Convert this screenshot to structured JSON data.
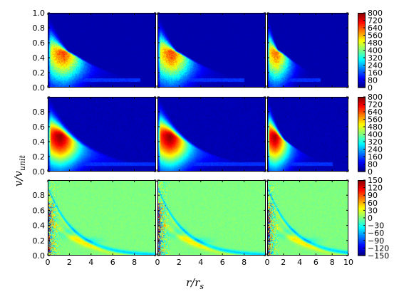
{
  "chart_data": {
    "type": "heatmap",
    "layout": "3x3 grid of 2D histograms with one colorbar per row",
    "xlabel": "r/r",
    "xlabel_sub": "s",
    "ylabel": "v/v",
    "ylabel_sub": "unit",
    "xlim": [
      0,
      10
    ],
    "x_ticks": [
      "0",
      "2",
      "4",
      "6",
      "8"
    ],
    "x_ticks_last_panel": [
      "0",
      "2",
      "4",
      "6",
      "8",
      "10"
    ],
    "colormap": "jet",
    "rows": [
      {
        "ylim": [
          0.0,
          1.0
        ],
        "y_ticks": [
          "0.0",
          "0.2",
          "0.4",
          "0.6",
          "0.8",
          "1.0"
        ],
        "colorbar_range": [
          0,
          800
        ],
        "colorbar_ticks": [
          "800",
          "720",
          "640",
          "560",
          "480",
          "400",
          "320",
          "240",
          "160",
          "80",
          "0"
        ],
        "panels": [
          {
            "peak_r": 1.5,
            "peak_v": 0.43,
            "r_extent": 7.5,
            "peak_level": 0.78
          },
          {
            "peak_r": 1.4,
            "peak_v": 0.43,
            "r_extent": 7.0,
            "peak_level": 0.78
          },
          {
            "peak_r": 1.2,
            "peak_v": 0.43,
            "r_extent": 5.5,
            "peak_level": 0.74
          }
        ]
      },
      {
        "ylim": [
          0.0,
          1.0
        ],
        "y_ticks": [
          "0.0",
          "0.2",
          "0.4",
          "0.6",
          "0.8"
        ],
        "colorbar_range": [
          0,
          800
        ],
        "colorbar_ticks": [
          "800",
          "720",
          "640",
          "560",
          "480",
          "400",
          "320",
          "240",
          "160",
          "80",
          "0"
        ],
        "panels": [
          {
            "peak_r": 1.2,
            "peak_v": 0.43,
            "r_extent": 9.5,
            "peak_level": 0.95
          },
          {
            "peak_r": 1.2,
            "peak_v": 0.43,
            "r_extent": 9.0,
            "peak_level": 0.95
          },
          {
            "peak_r": 1.0,
            "peak_v": 0.43,
            "r_extent": 7.0,
            "peak_level": 0.93
          }
        ]
      },
      {
        "ylim": [
          0.0,
          1.0
        ],
        "y_ticks": [
          "0.0",
          "0.2",
          "0.4",
          "0.6",
          "0.8"
        ],
        "colorbar_range": [
          -150,
          150
        ],
        "colorbar_ticks": [
          "150",
          "120",
          "90",
          "60",
          "30",
          "0",
          "−30",
          "−60",
          "−90",
          "−120",
          "−150"
        ],
        "panels": [
          {
            "residual": true
          },
          {
            "residual": true
          },
          {
            "residual": true
          }
        ]
      }
    ],
    "grid": false,
    "legend": "none"
  }
}
